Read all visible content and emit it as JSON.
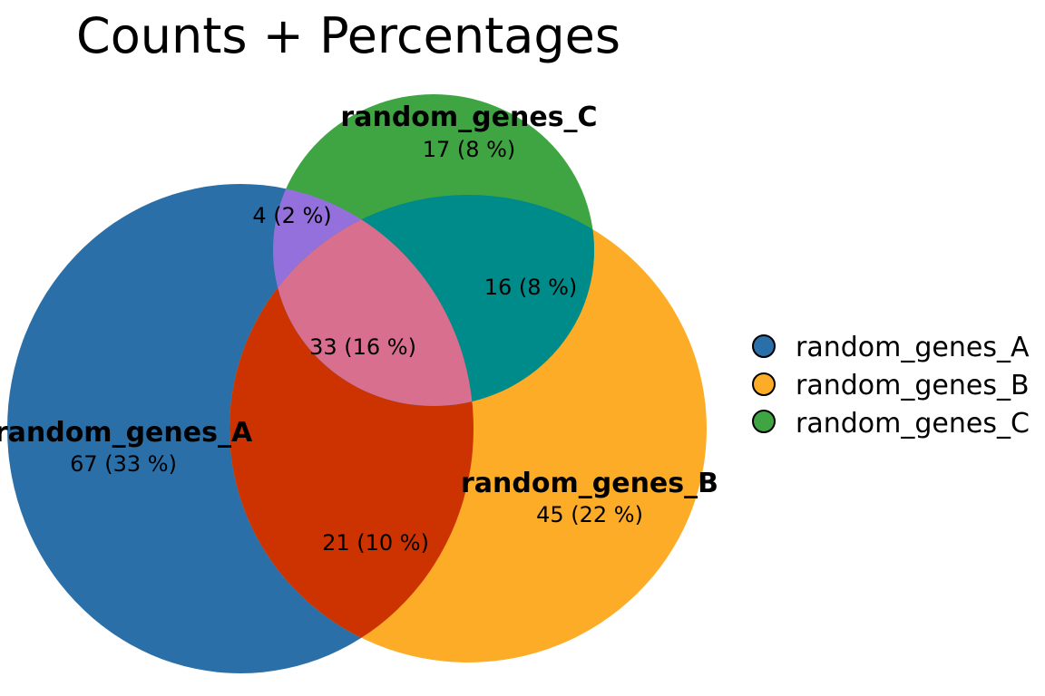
{
  "title": "Counts + Percentages",
  "colors": {
    "set_a": "#2b6fa8",
    "set_b": "#fdac27",
    "set_c": "#3fa442",
    "a_only_b": "#cc3300",
    "a_only_c": "#9370db",
    "b_only_c": "#008b8b",
    "abc": "#d96f8f"
  },
  "sets": {
    "a": {
      "name": "random_genes_A",
      "label": "67 (33 %)"
    },
    "b": {
      "name": "random_genes_B",
      "label": "45 (22 %)"
    },
    "c": {
      "name": "random_genes_C",
      "label": "17 (8 %)"
    }
  },
  "intersections": {
    "ab": "21 (10 %)",
    "ac": "4 (2 %)",
    "bc": "16 (8 %)",
    "abc": "33 (16 %)"
  },
  "legend": [
    {
      "name": "random_genes_A",
      "color": "#2b6fa8"
    },
    {
      "name": "random_genes_B",
      "color": "#fdac27"
    },
    {
      "name": "random_genes_C",
      "color": "#3fa442"
    }
  ]
}
